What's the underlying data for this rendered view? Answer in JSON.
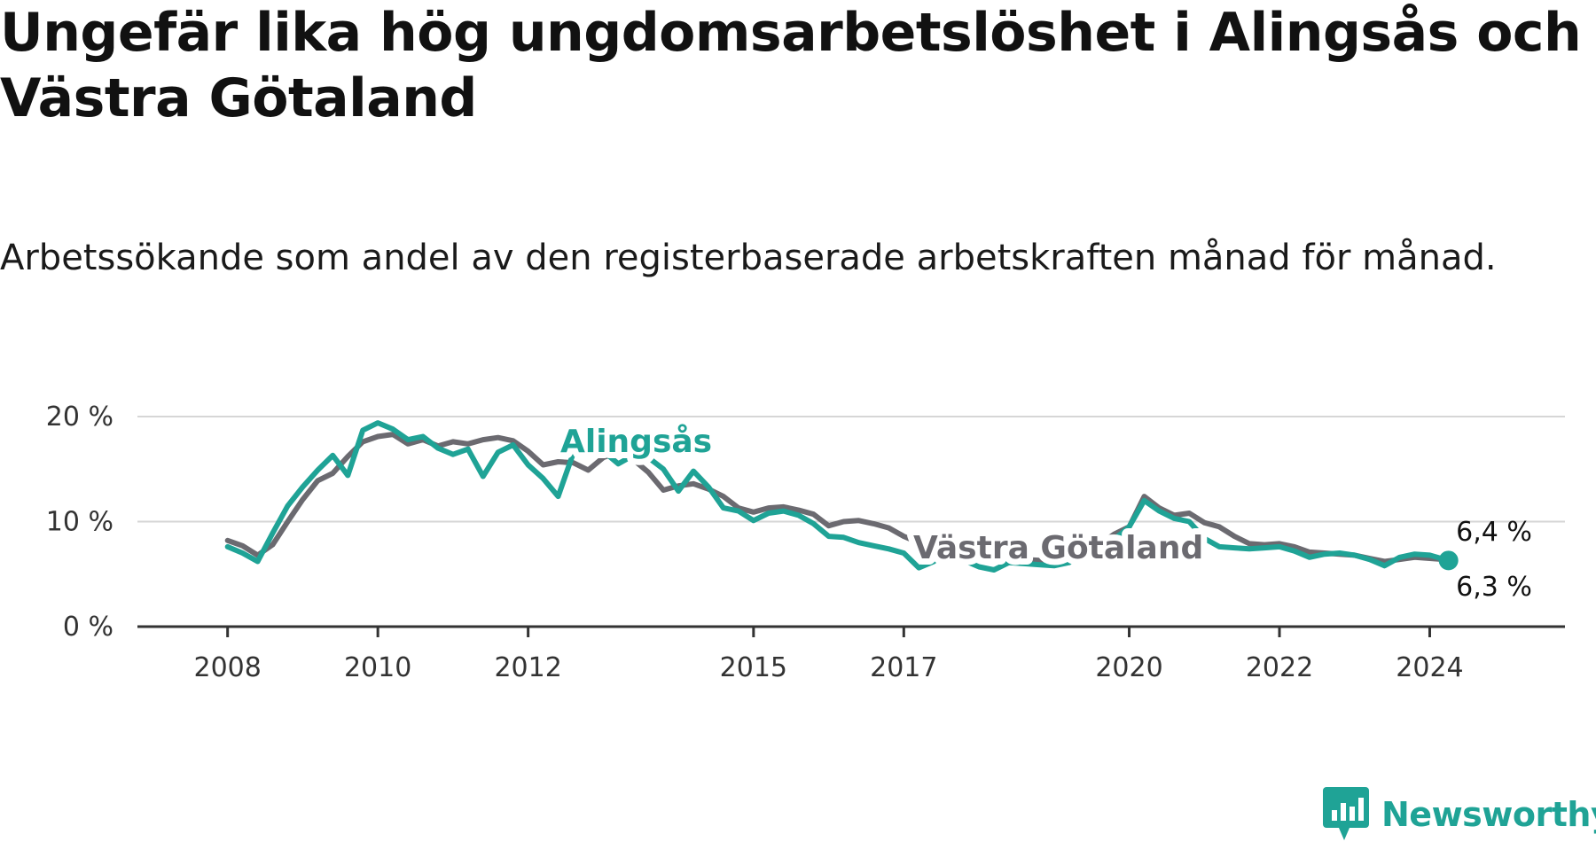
{
  "title": "Ungefär lika hög ungdomsarbetslöshet i Alingsås och Västra Götaland",
  "subtitle": "Arbetssökande som andel av den registerbaserade arbetskraften månad för månad.",
  "brand": {
    "name": "Newsworthy",
    "color": "#1fa396"
  },
  "chart_data": {
    "type": "line",
    "title": "Ungefär lika hög ungdomsarbetslöshet i Alingsås och Västra Götaland",
    "subtitle": "Arbetssökande som andel av den registerbaserade arbetskraften månad för månad.",
    "xlabel": "",
    "ylabel": "",
    "xlim": [
      2006.8,
      2025.8
    ],
    "ylim": [
      0,
      20
    ],
    "x_ticks": [
      2008,
      2010,
      2012,
      2015,
      2017,
      2020,
      2022,
      2024
    ],
    "x_tick_labels": [
      "2008",
      "2010",
      "2012",
      "2015",
      "2017",
      "2020",
      "2022",
      "2024"
    ],
    "y_ticks": [
      0,
      10,
      20
    ],
    "y_tick_labels": [
      "0 %",
      "10 %",
      "20 %"
    ],
    "grid": "horizontal",
    "legend": "inline labels",
    "series": [
      {
        "name": "Västra Götaland",
        "color": "#6b6a70",
        "x": [
          2008.0,
          2008.2,
          2008.4,
          2008.6,
          2008.8,
          2009.0,
          2009.2,
          2009.4,
          2009.6,
          2009.8,
          2010.0,
          2010.2,
          2010.4,
          2010.6,
          2010.8,
          2011.0,
          2011.2,
          2011.4,
          2011.6,
          2011.8,
          2012.0,
          2012.2,
          2012.4,
          2012.6,
          2012.8,
          2013.0,
          2013.2,
          2013.4,
          2013.6,
          2013.8,
          2014.0,
          2014.2,
          2014.4,
          2014.6,
          2014.8,
          2015.0,
          2015.2,
          2015.4,
          2015.6,
          2015.8,
          2016.0,
          2016.2,
          2016.4,
          2016.6,
          2016.8,
          2017.0,
          2017.2,
          2017.4,
          2017.6,
          2017.8,
          2018.0,
          2018.2,
          2018.4,
          2018.6,
          2018.8,
          2019.0,
          2019.2,
          2019.4,
          2019.6,
          2019.8,
          2020.0,
          2020.2,
          2020.4,
          2020.6,
          2020.8,
          2021.0,
          2021.2,
          2021.4,
          2021.6,
          2021.8,
          2022.0,
          2022.2,
          2022.4,
          2022.6,
          2022.8,
          2023.0,
          2023.2,
          2023.4,
          2023.6,
          2023.8,
          2024.0,
          2024.2,
          2024.25
        ],
        "values": [
          8.2,
          7.7,
          6.8,
          7.8,
          10.0,
          12.1,
          13.9,
          14.6,
          16.2,
          17.6,
          18.1,
          18.3,
          17.4,
          17.8,
          17.2,
          17.6,
          17.4,
          17.8,
          18.0,
          17.7,
          16.7,
          15.4,
          15.7,
          15.6,
          14.9,
          16.1,
          16.6,
          15.9,
          14.7,
          13.0,
          13.4,
          13.6,
          13.1,
          12.4,
          11.3,
          10.9,
          11.3,
          11.4,
          11.1,
          10.7,
          9.6,
          10.0,
          10.1,
          9.8,
          9.4,
          8.6,
          8.0,
          7.5,
          7.0,
          6.8,
          6.7,
          6.5,
          6.4,
          6.4,
          6.3,
          6.4,
          6.5,
          7.0,
          7.8,
          8.8,
          9.5,
          12.4,
          11.3,
          10.6,
          10.8,
          9.9,
          9.5,
          8.6,
          7.9,
          7.8,
          7.9,
          7.6,
          7.1,
          7.0,
          6.9,
          6.8,
          6.5,
          6.2,
          6.4,
          6.6,
          6.5,
          6.4,
          6.4
        ]
      },
      {
        "name": "Alingsås",
        "color": "#1fa396",
        "x": [
          2008.0,
          2008.2,
          2008.4,
          2008.6,
          2008.8,
          2009.0,
          2009.2,
          2009.4,
          2009.6,
          2009.8,
          2010.0,
          2010.2,
          2010.4,
          2010.6,
          2010.8,
          2011.0,
          2011.2,
          2011.4,
          2011.6,
          2011.8,
          2012.0,
          2012.2,
          2012.4,
          2012.6,
          2012.8,
          2013.0,
          2013.2,
          2013.4,
          2013.6,
          2013.8,
          2014.0,
          2014.2,
          2014.4,
          2014.6,
          2014.8,
          2015.0,
          2015.2,
          2015.4,
          2015.6,
          2015.8,
          2016.0,
          2016.2,
          2016.4,
          2016.6,
          2016.8,
          2017.0,
          2017.2,
          2017.4,
          2017.6,
          2017.8,
          2018.0,
          2018.2,
          2018.4,
          2018.6,
          2018.8,
          2019.0,
          2019.2,
          2019.4,
          2019.6,
          2019.8,
          2020.0,
          2020.2,
          2020.4,
          2020.6,
          2020.8,
          2021.0,
          2021.2,
          2021.4,
          2021.6,
          2021.8,
          2022.0,
          2022.2,
          2022.4,
          2022.6,
          2022.8,
          2023.0,
          2023.2,
          2023.4,
          2023.6,
          2023.8,
          2024.0,
          2024.2,
          2024.25
        ],
        "values": [
          7.6,
          7.0,
          6.2,
          8.9,
          11.5,
          13.3,
          14.9,
          16.3,
          14.4,
          18.7,
          19.4,
          18.8,
          17.8,
          18.1,
          17.0,
          16.4,
          16.9,
          14.3,
          16.6,
          17.3,
          15.4,
          14.1,
          12.4,
          16.5,
          17.2,
          16.7,
          15.5,
          16.3,
          16.1,
          15.0,
          12.9,
          14.8,
          13.3,
          11.3,
          11.0,
          10.1,
          10.8,
          11.0,
          10.6,
          9.8,
          8.6,
          8.5,
          8.0,
          7.7,
          7.4,
          7.0,
          5.6,
          6.2,
          7.4,
          6.3,
          5.7,
          5.4,
          6.1,
          6.0,
          5.9,
          5.8,
          6.1,
          6.9,
          7.4,
          8.3,
          9.5,
          12.0,
          11.0,
          10.3,
          10.0,
          8.4,
          7.6,
          7.5,
          7.4,
          7.5,
          7.6,
          7.2,
          6.6,
          6.9,
          7.0,
          6.8,
          6.4,
          5.8,
          6.6,
          6.9,
          6.8,
          6.4,
          6.3
        ]
      }
    ],
    "end_labels": [
      "6,4 %",
      "6,3 %"
    ]
  }
}
